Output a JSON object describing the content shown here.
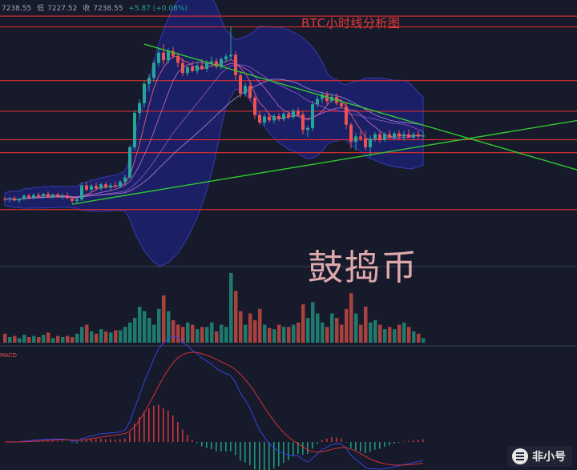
{
  "header": {
    "price_partial": "7238.55",
    "low_label": "低",
    "low_value": "7227.52",
    "close_label": "收",
    "close_value": "7238.55",
    "change": "+5.87 (+0.08%)"
  },
  "chart_title": "BTC小时线分析图",
  "watermark": "鼓捣币",
  "macd_label": "MACD",
  "logo_text": "非小号",
  "colors": {
    "background": "#161a2b",
    "up": "#26a69a",
    "down": "#ef5350",
    "band_fill": "#1c2170",
    "band_edge": "#3b43c9",
    "hline": "#d32f2f",
    "trendline": "#32c832",
    "title": "#e53935"
  },
  "icons": [
    "feixiaohao-logo-icon"
  ],
  "chart_data": {
    "type": "candlestick",
    "title": "BTC小时线分析图",
    "candles_ohlc": [
      [
        7080,
        7083,
        7075,
        7079
      ],
      [
        7079,
        7084,
        7073,
        7081
      ],
      [
        7081,
        7085,
        7076,
        7077
      ],
      [
        7077,
        7082,
        7072,
        7080
      ],
      [
        7080,
        7088,
        7077,
        7086
      ],
      [
        7086,
        7089,
        7080,
        7082
      ],
      [
        7082,
        7090,
        7079,
        7087
      ],
      [
        7087,
        7092,
        7083,
        7085
      ],
      [
        7085,
        7091,
        7080,
        7089
      ],
      [
        7089,
        7094,
        7082,
        7083
      ],
      [
        7083,
        7090,
        7080,
        7088
      ],
      [
        7088,
        7091,
        7082,
        7084
      ],
      [
        7084,
        7090,
        7079,
        7086
      ],
      [
        7086,
        7092,
        7080,
        7081
      ],
      [
        7081,
        7085,
        7072,
        7076
      ],
      [
        7076,
        7082,
        7070,
        7079
      ],
      [
        7079,
        7110,
        7076,
        7105
      ],
      [
        7105,
        7112,
        7094,
        7097
      ],
      [
        7097,
        7108,
        7092,
        7104
      ],
      [
        7104,
        7110,
        7096,
        7099
      ],
      [
        7099,
        7110,
        7095,
        7107
      ],
      [
        7107,
        7112,
        7098,
        7101
      ],
      [
        7101,
        7110,
        7096,
        7105
      ],
      [
        7105,
        7112,
        7100,
        7103
      ],
      [
        7103,
        7115,
        7100,
        7112
      ],
      [
        7112,
        7125,
        7106,
        7120
      ],
      [
        7120,
        7180,
        7118,
        7176
      ],
      [
        7176,
        7245,
        7170,
        7240
      ],
      [
        7240,
        7265,
        7228,
        7258
      ],
      [
        7258,
        7300,
        7250,
        7294
      ],
      [
        7294,
        7312,
        7280,
        7305
      ],
      [
        7305,
        7338,
        7298,
        7333
      ],
      [
        7333,
        7360,
        7326,
        7352
      ],
      [
        7352,
        7368,
        7330,
        7338
      ],
      [
        7338,
        7360,
        7332,
        7355
      ],
      [
        7355,
        7362,
        7341,
        7346
      ],
      [
        7346,
        7352,
        7325,
        7333
      ],
      [
        7333,
        7342,
        7308,
        7314
      ],
      [
        7314,
        7330,
        7308,
        7325
      ],
      [
        7325,
        7336,
        7315,
        7318
      ],
      [
        7318,
        7334,
        7312,
        7328
      ],
      [
        7328,
        7340,
        7320,
        7322
      ],
      [
        7322,
        7338,
        7316,
        7333
      ],
      [
        7333,
        7345,
        7325,
        7336
      ],
      [
        7336,
        7342,
        7322,
        7326
      ],
      [
        7326,
        7344,
        7320,
        7340
      ],
      [
        7340,
        7350,
        7334,
        7345
      ],
      [
        7345,
        7400,
        7338,
        7348
      ],
      [
        7348,
        7354,
        7300,
        7310
      ],
      [
        7310,
        7318,
        7268,
        7276
      ],
      [
        7276,
        7296,
        7270,
        7290
      ],
      [
        7290,
        7296,
        7262,
        7268
      ],
      [
        7268,
        7272,
        7228,
        7236
      ],
      [
        7236,
        7244,
        7218,
        7222
      ],
      [
        7222,
        7238,
        7216,
        7233
      ],
      [
        7233,
        7240,
        7222,
        7226
      ],
      [
        7226,
        7238,
        7220,
        7234
      ],
      [
        7234,
        7240,
        7224,
        7228
      ],
      [
        7228,
        7242,
        7224,
        7238
      ],
      [
        7238,
        7242,
        7228,
        7232
      ],
      [
        7232,
        7248,
        7228,
        7244
      ],
      [
        7244,
        7250,
        7234,
        7237
      ],
      [
        7237,
        7244,
        7200,
        7208
      ],
      [
        7208,
        7216,
        7195,
        7212
      ],
      [
        7212,
        7262,
        7206,
        7256
      ],
      [
        7256,
        7272,
        7250,
        7266
      ],
      [
        7266,
        7280,
        7258,
        7274
      ],
      [
        7274,
        7280,
        7256,
        7262
      ],
      [
        7262,
        7276,
        7258,
        7270
      ],
      [
        7270,
        7276,
        7254,
        7258
      ],
      [
        7258,
        7266,
        7248,
        7252
      ],
      [
        7252,
        7258,
        7210,
        7218
      ],
      [
        7218,
        7222,
        7174,
        7186
      ],
      [
        7186,
        7202,
        7170,
        7196
      ],
      [
        7196,
        7206,
        7188,
        7192
      ],
      [
        7192,
        7206,
        7170,
        7176
      ],
      [
        7176,
        7198,
        7158,
        7192
      ],
      [
        7192,
        7204,
        7186,
        7200
      ],
      [
        7200,
        7206,
        7184,
        7190
      ],
      [
        7190,
        7204,
        7186,
        7200
      ],
      [
        7200,
        7208,
        7190,
        7194
      ],
      [
        7194,
        7206,
        7190,
        7202
      ],
      [
        7202,
        7208,
        7190,
        7196
      ],
      [
        7196,
        7206,
        7188,
        7200
      ],
      [
        7200,
        7210,
        7193,
        7194
      ],
      [
        7194,
        7204,
        7190,
        7200
      ],
      [
        7200,
        7206,
        7192,
        7196
      ],
      [
        7196,
        7205,
        7190,
        7198
      ]
    ],
    "volume": [
      8,
      5,
      6,
      4,
      7,
      5,
      6,
      5,
      7,
      9,
      4,
      6,
      5,
      6,
      5,
      8,
      14,
      16,
      10,
      8,
      12,
      10,
      9,
      11,
      11,
      14,
      18,
      22,
      32,
      28,
      22,
      16,
      30,
      42,
      28,
      20,
      16,
      14,
      18,
      16,
      12,
      14,
      14,
      18,
      10,
      16,
      14,
      62,
      46,
      28,
      16,
      26,
      20,
      30,
      16,
      13,
      12,
      16,
      14,
      14,
      16,
      18,
      34,
      22,
      36,
      26,
      18,
      14,
      26,
      22,
      16,
      30,
      44,
      26,
      16,
      32,
      18,
      20,
      16,
      12,
      14,
      12,
      16,
      18,
      14,
      10,
      8,
      4
    ],
    "horizontal_levels": [
      7420,
      7400,
      7300,
      7243,
      7190,
      7166,
      7060
    ],
    "trendlines": [
      {
        "points": [
          [
            29,
            7368
          ],
          [
            99,
            7186
          ]
        ]
      },
      {
        "points": [
          [
            14,
            7070
          ],
          [
            99,
            7196
          ]
        ]
      }
    ],
    "indicators": [
      "bollinger bands",
      "moving averages",
      "volume",
      "macd"
    ],
    "grid": false
  }
}
